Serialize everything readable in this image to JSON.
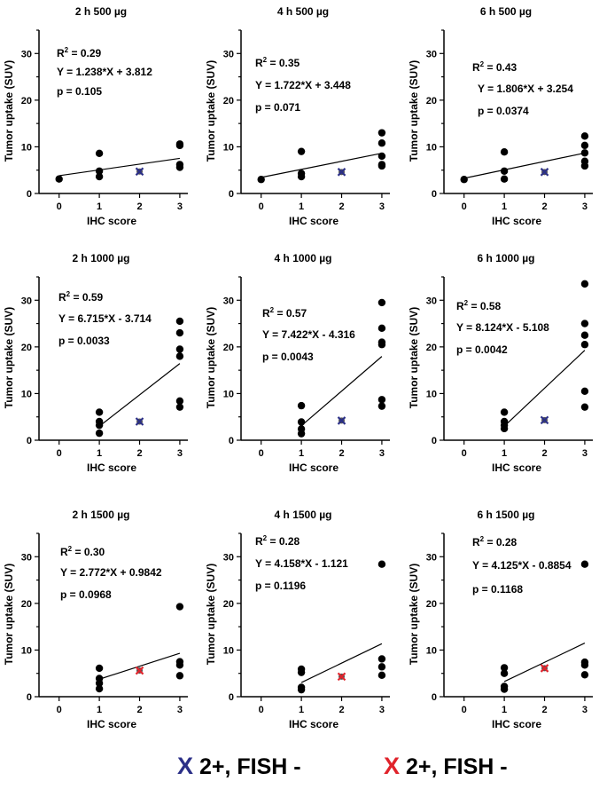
{
  "chart_data": [
    {
      "type": "scatter",
      "title": "2 h 500 µg",
      "xlabel": "IHC score",
      "ylabel": "Tumor uptake (SUV)",
      "xlim": [
        -0.5,
        3.2
      ],
      "ylim": [
        0,
        35
      ],
      "xticks": [
        "0",
        "1",
        "2",
        "3"
      ],
      "yticks": [
        "0",
        "10",
        "20",
        "30"
      ],
      "r2_label": "R",
      "r2_value": "0.29",
      "equation": "Y = 1.238*X + 3.812",
      "pvalue": "p = 0.105",
      "points": [
        [
          0,
          3.1
        ],
        [
          1,
          8.6
        ],
        [
          1,
          4.8
        ],
        [
          1,
          3.6
        ],
        [
          3,
          10.3
        ],
        [
          3,
          10.6
        ],
        [
          3,
          6.2
        ],
        [
          3,
          5.6
        ]
      ],
      "x_marker": {
        "x": 2,
        "y": 4.7,
        "color": "#2b2f87"
      },
      "fit": {
        "slope": 1.238,
        "intercept": 3.812,
        "x": [
          0,
          3
        ]
      }
    },
    {
      "type": "scatter",
      "title": "4 h 500 µg",
      "xlabel": "IHC score",
      "ylabel": "Tumor uptake (SUV)",
      "xlim": [
        -0.5,
        3.2
      ],
      "ylim": [
        0,
        35
      ],
      "xticks": [
        "0",
        "1",
        "2",
        "3"
      ],
      "yticks": [
        "0",
        "10",
        "20",
        "30"
      ],
      "r2_label": "R",
      "r2_value": "0.35",
      "equation": "Y = 1.722*X + 3.448",
      "pvalue": "p = 0.071",
      "points": [
        [
          0,
          3.0
        ],
        [
          1,
          9.0
        ],
        [
          1,
          4.3
        ],
        [
          1,
          3.6
        ],
        [
          3,
          13.0
        ],
        [
          3,
          10.8
        ],
        [
          3,
          8.0
        ],
        [
          3,
          6.2
        ],
        [
          3,
          5.9
        ]
      ],
      "x_marker": {
        "x": 2,
        "y": 4.6,
        "color": "#2b2f87"
      },
      "fit": {
        "slope": 1.722,
        "intercept": 3.448,
        "x": [
          0,
          3
        ]
      }
    },
    {
      "type": "scatter",
      "title": "6 h 500 µg",
      "xlabel": "IHC score",
      "ylabel": "Tumor uptake (SUV)",
      "xlim": [
        -0.5,
        3.2
      ],
      "ylim": [
        0,
        35
      ],
      "xticks": [
        "0",
        "1",
        "2",
        "3"
      ],
      "yticks": [
        "0",
        "10",
        "20",
        "30"
      ],
      "r2_label": "R",
      "r2_value": "0.43",
      "equation": "Y = 1.806*X + 3.254",
      "pvalue": "p = 0.0374",
      "points": [
        [
          0,
          3.0
        ],
        [
          1,
          8.9
        ],
        [
          1,
          4.8
        ],
        [
          1,
          3.1
        ],
        [
          3,
          12.3
        ],
        [
          3,
          10.3
        ],
        [
          3,
          8.7
        ],
        [
          3,
          6.9
        ],
        [
          3,
          5.9
        ]
      ],
      "x_marker": {
        "x": 2,
        "y": 4.6,
        "color": "#2b2f87"
      },
      "fit": {
        "slope": 1.806,
        "intercept": 3.254,
        "x": [
          0,
          3
        ]
      }
    },
    {
      "type": "scatter",
      "title": "2 h 1000 µg",
      "xlabel": "IHC score",
      "ylabel": "Tumor uptake (SUV)",
      "xlim": [
        -0.5,
        3.2
      ],
      "ylim": [
        0,
        35
      ],
      "xticks": [
        "0",
        "1",
        "2",
        "3"
      ],
      "yticks": [
        "0",
        "10",
        "20",
        "30"
      ],
      "r2_label": "R",
      "r2_value": "0.59",
      "equation": "Y = 6.715*X - 3.714",
      "pvalue": "p = 0.0033",
      "points": [
        [
          1,
          6.0
        ],
        [
          1,
          4.0
        ],
        [
          1,
          3.2
        ],
        [
          1,
          1.5
        ],
        [
          3,
          25.5
        ],
        [
          3,
          23.0
        ],
        [
          3,
          19.5
        ],
        [
          3,
          18.0
        ],
        [
          3,
          8.4
        ],
        [
          3,
          7.1
        ]
      ],
      "x_marker": {
        "x": 2,
        "y": 4.0,
        "color": "#2b2f87"
      },
      "fit": {
        "slope": 6.715,
        "intercept": -3.714,
        "x": [
          1,
          3
        ]
      }
    },
    {
      "type": "scatter",
      "title": "4 h 1000 µg",
      "xlabel": "IHC score",
      "ylabel": "Tumor uptake (SUV)",
      "xlim": [
        -0.5,
        3.2
      ],
      "ylim": [
        0,
        35
      ],
      "xticks": [
        "0",
        "1",
        "2",
        "3"
      ],
      "yticks": [
        "0",
        "10",
        "20",
        "30"
      ],
      "r2_label": "R",
      "r2_value": "0.57",
      "equation": "Y = 7.422*X - 4.316",
      "pvalue": "p = 0.0043",
      "points": [
        [
          1,
          7.4
        ],
        [
          1,
          3.9
        ],
        [
          1,
          2.4
        ],
        [
          1,
          1.4
        ],
        [
          3,
          29.5
        ],
        [
          3,
          24.0
        ],
        [
          3,
          21.0
        ],
        [
          3,
          20.5
        ],
        [
          3,
          8.7
        ],
        [
          3,
          7.3
        ]
      ],
      "x_marker": {
        "x": 2,
        "y": 4.2,
        "color": "#2b2f87"
      },
      "fit": {
        "slope": 7.422,
        "intercept": -4.316,
        "x": [
          1,
          3
        ]
      }
    },
    {
      "type": "scatter",
      "title": "6 h 1000 µg",
      "xlabel": "IHC score",
      "ylabel": "Tumor uptake (SUV)",
      "xlim": [
        -0.5,
        3.2
      ],
      "ylim": [
        0,
        35
      ],
      "xticks": [
        "0",
        "1",
        "2",
        "3"
      ],
      "yticks": [
        "0",
        "10",
        "20",
        "30"
      ],
      "r2_label": "R",
      "r2_value": "0.58",
      "equation": "Y = 8.124*X - 5.108",
      "pvalue": "p = 0.0042",
      "points": [
        [
          1,
          6.0
        ],
        [
          1,
          4.0
        ],
        [
          1,
          3.2
        ],
        [
          1,
          2.5
        ],
        [
          3,
          33.5
        ],
        [
          3,
          25.0
        ],
        [
          3,
          22.5
        ],
        [
          3,
          20.5
        ],
        [
          3,
          10.5
        ],
        [
          3,
          7.1
        ]
      ],
      "x_marker": {
        "x": 2,
        "y": 4.3,
        "color": "#2b2f87"
      },
      "fit": {
        "slope": 8.124,
        "intercept": -5.108,
        "x": [
          1,
          3
        ]
      }
    },
    {
      "type": "scatter",
      "title": "2 h 1500 µg",
      "xlabel": "IHC score",
      "ylabel": "Tumor uptake (SUV)",
      "xlim": [
        -0.5,
        3.2
      ],
      "ylim": [
        0,
        35
      ],
      "xticks": [
        "0",
        "1",
        "2",
        "3"
      ],
      "yticks": [
        "0",
        "10",
        "20",
        "30"
      ],
      "r2_label": "R",
      "r2_value": "0.30",
      "equation": "Y = 2.772*X + 0.9842",
      "pvalue": "p = 0.0968",
      "points": [
        [
          1,
          6.1
        ],
        [
          1,
          3.9
        ],
        [
          1,
          2.9
        ],
        [
          1,
          1.7
        ],
        [
          3,
          19.3
        ],
        [
          3,
          7.5
        ],
        [
          3,
          6.8
        ],
        [
          3,
          4.5
        ]
      ],
      "x_marker": {
        "x": 2,
        "y": 5.6,
        "color": "#e0232b"
      },
      "fit": {
        "slope": 2.772,
        "intercept": 0.9842,
        "x": [
          1,
          3
        ]
      }
    },
    {
      "type": "scatter",
      "title": "4 h 1500 µg",
      "xlabel": "IHC score",
      "ylabel": "Tumor uptake (SUV)",
      "xlim": [
        -0.5,
        3.2
      ],
      "ylim": [
        0,
        35
      ],
      "xticks": [
        "0",
        "1",
        "2",
        "3"
      ],
      "yticks": [
        "0",
        "10",
        "20",
        "30"
      ],
      "r2_label": "R",
      "r2_value": "0.28",
      "equation": "Y = 4.158*X - 1.121",
      "pvalue": "p = 0.1196",
      "points": [
        [
          1,
          5.9
        ],
        [
          1,
          5.2
        ],
        [
          1,
          2.0
        ],
        [
          1,
          1.5
        ],
        [
          3,
          28.4
        ],
        [
          3,
          8.1
        ],
        [
          3,
          6.4
        ],
        [
          3,
          4.6
        ]
      ],
      "x_marker": {
        "x": 2,
        "y": 4.3,
        "color": "#e0232b"
      },
      "fit": {
        "slope": 4.158,
        "intercept": -1.121,
        "x": [
          1,
          3
        ]
      }
    },
    {
      "type": "scatter",
      "title": "6 h 1500 µg",
      "xlabel": "IHC score",
      "ylabel": "Tumor uptake (SUV)",
      "xlim": [
        -0.5,
        3.2
      ],
      "ylim": [
        0,
        35
      ],
      "xticks": [
        "0",
        "1",
        "2",
        "3"
      ],
      "yticks": [
        "0",
        "10",
        "20",
        "30"
      ],
      "r2_label": "R",
      "r2_value": "0.28",
      "equation": "Y = 4.125*X - 0.8854",
      "pvalue": "p = 0.1168",
      "points": [
        [
          1,
          6.2
        ],
        [
          1,
          5.0
        ],
        [
          1,
          2.2
        ],
        [
          1,
          1.6
        ],
        [
          3,
          28.4
        ],
        [
          3,
          7.4
        ],
        [
          3,
          6.8
        ],
        [
          3,
          4.7
        ]
      ],
      "x_marker": {
        "x": 2,
        "y": 6.1,
        "color": "#e0232b"
      },
      "fit": {
        "slope": 4.125,
        "intercept": -0.8854,
        "x": [
          1,
          3
        ]
      }
    }
  ],
  "legend": [
    {
      "marker": "X",
      "label": "2+, FISH -",
      "color": "#2b2f87"
    },
    {
      "marker": "X",
      "label": "2+, FISH -",
      "color": "#e0232b"
    }
  ]
}
